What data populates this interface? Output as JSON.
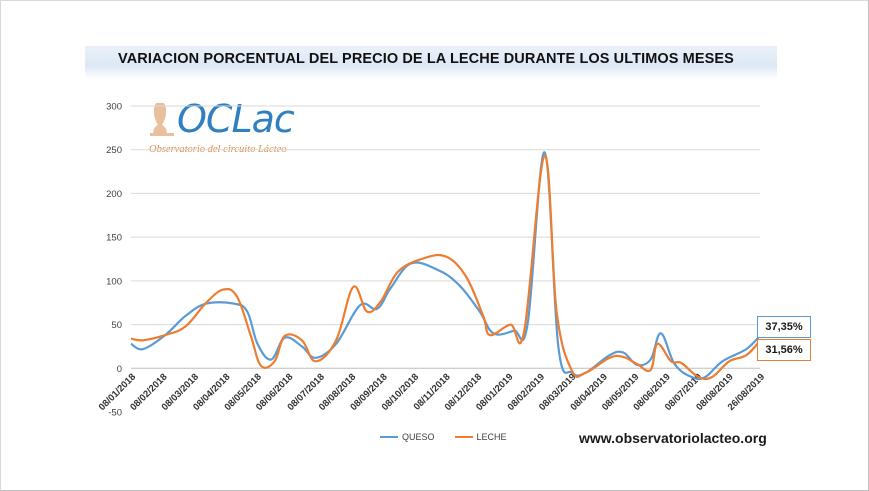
{
  "chart_data": {
    "type": "line",
    "title": "VARIACION PORCENTUAL DEL PRECIO DE LA LECHE DURANTE LOS ULTIMOS MESES",
    "ylim": [
      -50,
      300
    ],
    "y_ticks": [
      "300",
      "250",
      "200",
      "150",
      "100",
      "50",
      "0",
      "-50"
    ],
    "x_tick_labels": [
      "08/01/2018",
      "08/02/2018",
      "08/03/2018",
      "08/04/2018",
      "08/05/2018",
      "08/06/2018",
      "08/07/2018",
      "08/08/2018",
      "08/09/2018",
      "08/10/2018",
      "08/11/2018",
      "08/12/2018",
      "08/01/2019",
      "08/02/2019",
      "08/03/2019",
      "08/04/2019",
      "08/05/2019",
      "08/06/2019",
      "08/07/2019",
      "08/08/2019",
      "26/08/2019"
    ],
    "x_units": "months",
    "grid": "horizontal",
    "legend_position": "bottom",
    "series": [
      {
        "name": "QUESO",
        "color": "#5b9bd5",
        "points": [
          [
            0,
            28
          ],
          [
            0.35,
            22
          ],
          [
            1,
            38
          ],
          [
            1.6,
            60
          ],
          [
            2.2,
            74
          ],
          [
            3,
            74
          ],
          [
            3.4,
            65
          ],
          [
            3.7,
            28
          ],
          [
            4.1,
            10
          ],
          [
            4.5,
            35
          ],
          [
            5,
            25
          ],
          [
            5.4,
            12
          ],
          [
            6,
            28
          ],
          [
            6.7,
            72
          ],
          [
            7.2,
            68
          ],
          [
            7.6,
            92
          ],
          [
            8.2,
            120
          ],
          [
            9,
            112
          ],
          [
            9.6,
            95
          ],
          [
            10.2,
            65
          ],
          [
            10.6,
            40
          ],
          [
            11.2,
            43
          ],
          [
            11.6,
            50
          ],
          [
            12.1,
            247
          ],
          [
            12.5,
            25
          ],
          [
            12.9,
            -5
          ],
          [
            13.3,
            -5
          ],
          [
            14,
            15
          ],
          [
            14.4,
            18
          ],
          [
            14.8,
            4
          ],
          [
            15.2,
            10
          ],
          [
            15.5,
            40
          ],
          [
            15.9,
            5
          ],
          [
            16.4,
            -10
          ],
          [
            16.8,
            -10
          ],
          [
            17.3,
            8
          ],
          [
            18,
            22
          ],
          [
            18.4,
            37.35
          ]
        ]
      },
      {
        "name": "LECHE",
        "color": "#ed7d31",
        "points": [
          [
            0,
            34
          ],
          [
            0.35,
            32
          ],
          [
            1,
            38
          ],
          [
            1.6,
            48
          ],
          [
            2.2,
            75
          ],
          [
            2.7,
            90
          ],
          [
            3.1,
            82
          ],
          [
            3.5,
            38
          ],
          [
            3.8,
            3
          ],
          [
            4.2,
            8
          ],
          [
            4.5,
            37
          ],
          [
            5,
            32
          ],
          [
            5.4,
            8
          ],
          [
            6,
            32
          ],
          [
            6.5,
            93
          ],
          [
            6.9,
            65
          ],
          [
            7.3,
            76
          ],
          [
            7.8,
            110
          ],
          [
            8.5,
            125
          ],
          [
            9.2,
            128
          ],
          [
            9.8,
            105
          ],
          [
            10.3,
            60
          ],
          [
            10.5,
            38
          ],
          [
            11.1,
            50
          ],
          [
            11.5,
            42
          ],
          [
            12.1,
            243
          ],
          [
            12.45,
            65
          ],
          [
            12.9,
            -3
          ],
          [
            13.3,
            -5
          ],
          [
            14,
            12
          ],
          [
            14.4,
            13
          ],
          [
            14.8,
            5
          ],
          [
            15.2,
            -2
          ],
          [
            15.4,
            28
          ],
          [
            15.8,
            8
          ],
          [
            16.1,
            6
          ],
          [
            16.6,
            -10
          ],
          [
            17,
            -10
          ],
          [
            17.5,
            8
          ],
          [
            18,
            15
          ],
          [
            18.4,
            31.56
          ]
        ]
      }
    ],
    "end_labels": {
      "queso": "37,35%",
      "leche": "31,56%"
    }
  },
  "logo": {
    "text": "OCLac",
    "subtitle": "Observatorio del circuito Lácteo"
  },
  "website": "www.observatoriolacteo.org"
}
